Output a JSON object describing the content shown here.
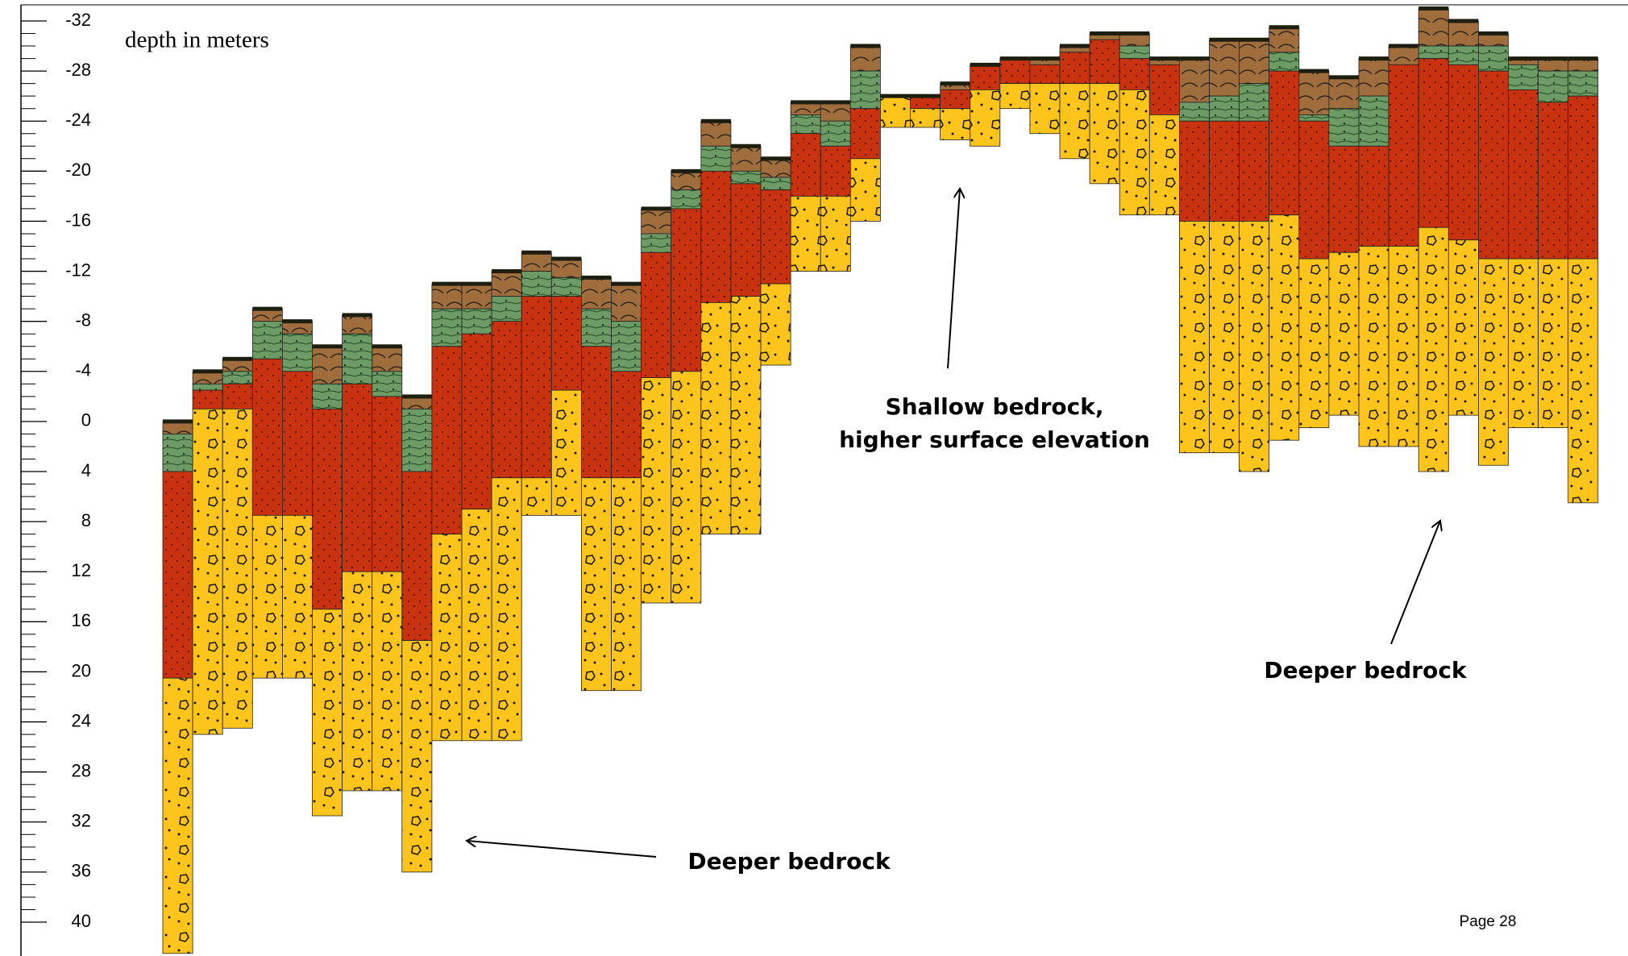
{
  "axis": {
    "label": "depth in meters",
    "ylim": [
      -32,
      40
    ],
    "yticks": [
      -32,
      -28,
      -24,
      -20,
      -16,
      -12,
      -8,
      -4,
      0,
      4,
      8,
      12,
      16,
      20,
      24,
      28,
      32,
      36,
      40
    ]
  },
  "columns": [
    [
      0,
      1,
      4,
      20.5,
      42.5
    ],
    [
      -4,
      -3,
      -2.5,
      -1,
      25
    ],
    [
      -5,
      -4,
      -3,
      -1,
      24.5
    ],
    [
      -9,
      -8,
      -5,
      7.5,
      20.5
    ],
    [
      -8,
      -7,
      -4,
      7.5,
      20.5
    ],
    [
      -6,
      -3,
      -1,
      15,
      31.5
    ],
    [
      -8.5,
      -7,
      -3,
      12,
      29.5
    ],
    [
      -6,
      -4,
      -2,
      12,
      29.5
    ],
    [
      -2,
      -1,
      4,
      17.5,
      36
    ],
    [
      -11,
      -9,
      -6,
      9,
      25.5
    ],
    [
      -11,
      -9,
      -7,
      7,
      25.5
    ],
    [
      -12,
      -10,
      -8,
      4.5,
      25.5
    ],
    [
      -13.5,
      -12,
      -10,
      4.5,
      7.5
    ],
    [
      -13,
      -11.5,
      -10,
      -2.5,
      7.5
    ],
    [
      -11.5,
      -9,
      -6,
      4.5,
      21.5
    ],
    [
      -11,
      -8,
      -4,
      4.5,
      21.5
    ],
    [
      -17,
      -15,
      -13.5,
      -3.5,
      14.5
    ],
    [
      -20,
      -18.5,
      -17,
      -4,
      14.5
    ],
    [
      -24,
      -22,
      -20,
      -9.5,
      9
    ],
    [
      -22,
      -20,
      -19,
      -10,
      9
    ],
    [
      -21,
      -19.5,
      -18.5,
      -11,
      -4.5
    ],
    [
      -25.5,
      -24.5,
      -23,
      -18,
      -12
    ],
    [
      -25.5,
      -24,
      -22,
      -18,
      -12
    ],
    [
      -30,
      -28,
      -25,
      -21,
      -16
    ],
    [
      -26,
      -26,
      -26,
      -26,
      -23.5
    ],
    [
      -26,
      -26,
      -26,
      -25,
      -23.5
    ],
    [
      -27,
      -26.5,
      -26.5,
      -25,
      -22.5
    ],
    [
      -28.5,
      -28.5,
      -28.5,
      -26.5,
      -22
    ],
    [
      -29,
      -29,
      -29,
      -27,
      -25
    ],
    [
      -29,
      -28.5,
      -28.5,
      -27,
      -23
    ],
    [
      -30,
      -29.5,
      -29.5,
      -27,
      -21
    ],
    [
      -31,
      -30.5,
      -30.5,
      -27,
      -19
    ],
    [
      -31,
      -30,
      -29,
      -26.5,
      -16.5
    ],
    [
      -29,
      -28.5,
      -28.5,
      -24.5,
      -16.5
    ],
    [
      -29,
      -25.5,
      -24,
      -16,
      2.5
    ],
    [
      -30.5,
      -26,
      -24,
      -16,
      2.5
    ],
    [
      -30.5,
      -27,
      -24,
      -16,
      4
    ],
    [
      -31.5,
      -29.5,
      -28,
      -16.5,
      1.5
    ],
    [
      -28,
      -24.5,
      -24,
      -13,
      0.5
    ],
    [
      -27.5,
      -25,
      -22,
      -13.5,
      -0.5
    ],
    [
      -29,
      -26,
      -22,
      -14,
      2
    ],
    [
      -30,
      -28.5,
      -28.5,
      -14,
      2
    ],
    [
      -33,
      -30,
      -29,
      -15.5,
      4
    ],
    [
      -32,
      -30,
      -28.5,
      -14.5,
      -0.5
    ],
    [
      -31,
      -30,
      -28,
      -13,
      3.5
    ],
    [
      -29,
      -28.5,
      -26.5,
      -13,
      0.5
    ],
    [
      -29,
      -28,
      -25.5,
      -13,
      0.5
    ],
    [
      -29,
      -28,
      -26,
      -13,
      6.5
    ]
  ],
  "annotations": {
    "shallow": [
      "Shallow bedrock,",
      "higher surface elevation"
    ],
    "deeper_left": "Deeper bedrock",
    "deeper_right": "Deeper bedrock"
  },
  "page": "Page 28"
}
